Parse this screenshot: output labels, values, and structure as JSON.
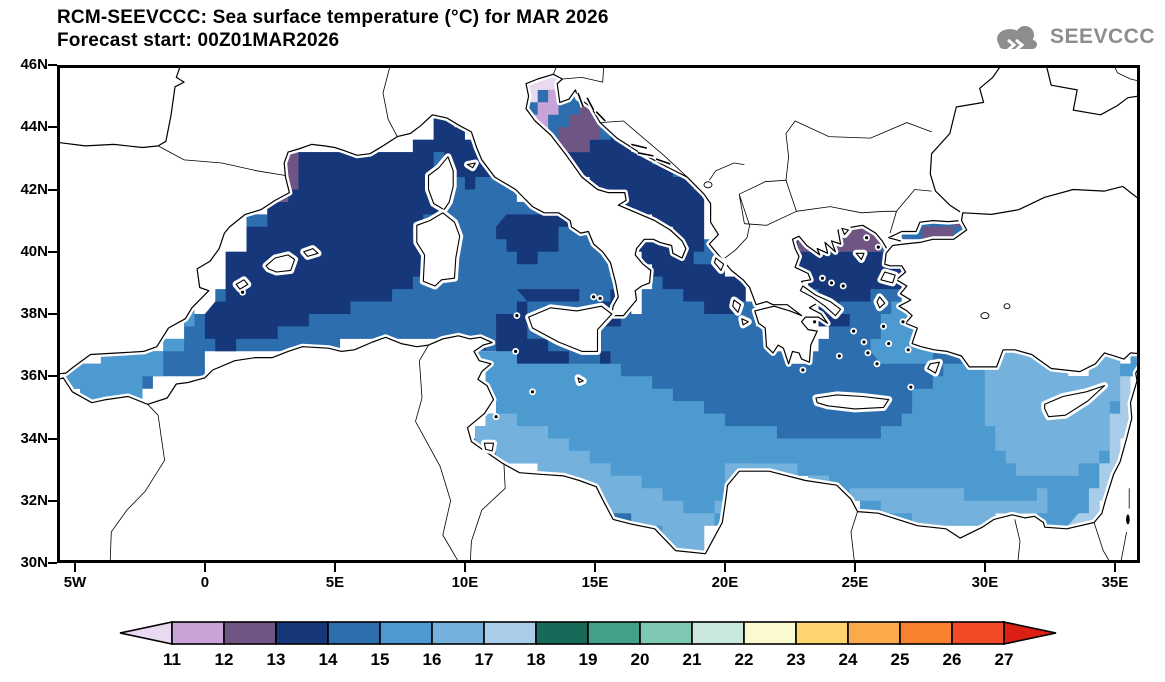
{
  "header": {
    "title": "RCM-SEEVCCC: Sea surface temperature (°C) for MAR 2026",
    "subtitle": "Forecast start: 00Z01MAR2026"
  },
  "logo": {
    "text": "SEEVCCC",
    "color": "#8d8d8d",
    "icon": "cloud-with-arrows-icon"
  },
  "axes": {
    "lat_ticks": {
      "labels": [
        "46N",
        "44N",
        "42N",
        "40N",
        "38N",
        "36N",
        "34N",
        "32N",
        "30N"
      ],
      "values": [
        46,
        44,
        42,
        40,
        38,
        36,
        34,
        32,
        30
      ]
    },
    "lon_ticks": {
      "labels": [
        "5W",
        "0",
        "5E",
        "10E",
        "15E",
        "20E",
        "25E",
        "30E",
        "35E"
      ],
      "values": [
        -5,
        0,
        5,
        10,
        15,
        20,
        25,
        30,
        35
      ]
    }
  },
  "chart_data": {
    "type": "heatmap",
    "title": "RCM-SEEVCCC: Sea surface temperature (°C) for MAR 2026",
    "subtitle": "Forecast start: 00Z01MAR2026",
    "variable": "Sea surface temperature",
    "units": "°C",
    "period": "MAR 2026",
    "forecast_start": "00Z01MAR2026",
    "lon_range_deg": [
      -5.7,
      36
    ],
    "lat_range_deg": [
      30,
      46
    ],
    "grid": "off",
    "legend_position": "bottom colorbar",
    "colorbar": {
      "tick_labels": [
        "11",
        "12",
        "13",
        "14",
        "15",
        "16",
        "17",
        "18",
        "19",
        "20",
        "21",
        "22",
        "23",
        "24",
        "25",
        "26",
        "27"
      ],
      "under_color": "#eadaf1",
      "cell_colors": [
        "#c8a3d8",
        "#6f5583",
        "#16387b",
        "#2d6fae",
        "#4d9ad0",
        "#74b2dd",
        "#a9cde8",
        "#17695a",
        "#42a089",
        "#7fc8b3",
        "#cbe8dd",
        "#fbf9d0",
        "#fdd470",
        "#faa94b",
        "#f8812f",
        "#f34b28"
      ],
      "over_color": "#dc1f15"
    },
    "range_colors": {
      "<11": "#eadaf1",
      "11-12": "#c8a3d8",
      "12-13": "#6f5583",
      "13-14": "#16387b",
      "14-15": "#2d6fae",
      "15-16": "#4d9ad0",
      "16-17": "#74b2dd",
      "17-18": "#a9cde8"
    },
    "zones": [
      {
        "id": "base",
        "region": "Western & central Mediterranean basins",
        "temp_c": "14-15"
      },
      {
        "id": "corinth",
        "region": "Gulf of Corinth",
        "temp_c": "14-15"
      },
      {
        "id": "nw_navy",
        "region": "Gulf of Lion / Balearic Sea / NW Mediterranean",
        "temp_c": "13-14"
      },
      {
        "id": "tyrr_navy",
        "region": "Central Tyrrhenian Sea",
        "temp_c": "13-14"
      },
      {
        "id": "sicily_n_navy",
        "region": "North of Sicily",
        "temp_c": "13-14"
      },
      {
        "id": "sicily_ws_navy",
        "region": "Strait of Sicily",
        "temp_c": "13-14"
      },
      {
        "id": "adriatic_s_navy",
        "region": "Southern Adriatic Sea",
        "temp_c": "13-14"
      },
      {
        "id": "ionian_navy",
        "region": "Northern Ionian Sea",
        "temp_c": "13-14"
      },
      {
        "id": "aegean_navy",
        "region": "Central & north Aegean Sea",
        "temp_c": "13-14"
      },
      {
        "id": "saronic_navy",
        "region": "Saronic Gulf / south Euboea",
        "temp_c": "13-14"
      },
      {
        "id": "etna_navy",
        "region": "East of Sicily",
        "temp_c": "13-14"
      },
      {
        "id": "alboran",
        "region": "Alboran Sea",
        "temp_c": "15-16"
      },
      {
        "id": "se_basin",
        "region": "South-central Mediterranean & Levantine basin",
        "temp_c": "15-16"
      },
      {
        "id": "aegean_se",
        "region": "SE Aegean / Dodecanese",
        "temp_c": "15-16"
      },
      {
        "id": "gabes",
        "region": "Gulf of Gabes / Libyan-Egyptian coast",
        "temp_c": "16-17"
      },
      {
        "id": "cyprus_pocket",
        "region": "SE Levantine basin around Cyprus",
        "temp_c": "16-17"
      },
      {
        "id": "levant_coast",
        "region": "Israel-Lebanon coastal strip",
        "temp_c": "17-18"
      },
      {
        "id": "adr_dp",
        "region": "North-central Adriatic",
        "temp_c": "12-13"
      },
      {
        "id": "adr_lp",
        "region": "North Adriatic",
        "temp_c": "11-12"
      },
      {
        "id": "adr_pale",
        "region": "Northernmost Adriatic",
        "temp_c": "<11"
      },
      {
        "id": "catalan_dp",
        "region": "Catalan coast",
        "temp_c": "12-13"
      },
      {
        "id": "naegean_dp",
        "region": "North Aegean / Thracian Sea",
        "temp_c": "12-13"
      },
      {
        "id": "naegean_lp",
        "region": "Thracian Sea patch",
        "temp_c": "11-12"
      },
      {
        "id": "marmara_dp",
        "region": "Sea of Marmara",
        "temp_c": "12-13"
      }
    ]
  }
}
